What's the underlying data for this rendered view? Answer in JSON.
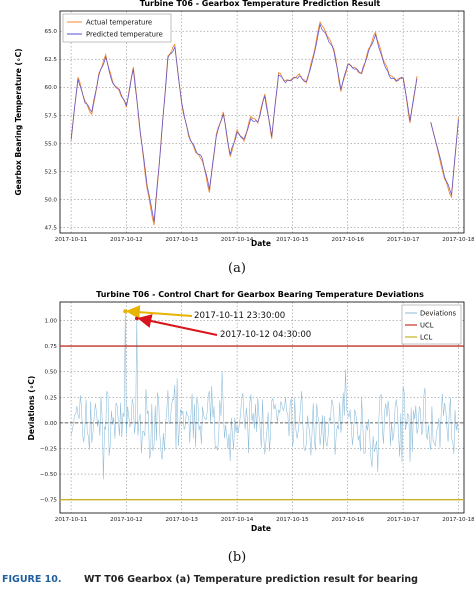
{
  "chart_data": [
    {
      "type": "line",
      "title": "Turbine T06 - Gearbox Temperature Prediction Result",
      "xlabel": "Date",
      "ylabel": "Gearbox Bearing Temperature (∘C)",
      "x_ticks": [
        "2017-10-11",
        "2017-10-12",
        "2017-10-13",
        "2017-10-14",
        "2017-10-15",
        "2017-10-16",
        "2017-10-17",
        "2017-10-18"
      ],
      "y_ticks": [
        "47.5",
        "50.0",
        "52.5",
        "55.0",
        "57.5",
        "60.0",
        "62.5",
        "65.0"
      ],
      "xlim_days": [
        10.8,
        18.1
      ],
      "ylim": [
        47.0,
        66.8
      ],
      "legend_position": "upper-left",
      "colors": {
        "actual": "#f08a30",
        "predicted": "#5a4fd6"
      },
      "series": [
        {
          "name": "Actual temperature",
          "x": [
            "10-11 00:00",
            "10-11 03:00",
            "10-11 06:00",
            "10-11 09:00",
            "10-11 12:00",
            "10-11 15:00",
            "10-11 18:00",
            "10-11 21:00",
            "10-12 00:00",
            "10-12 03:00",
            "10-12 06:00",
            "10-12 09:00",
            "10-12 12:00",
            "10-12 15:00",
            "10-12 18:00",
            "10-12 21:00",
            "10-13 00:00",
            "10-13 03:00",
            "10-13 06:00",
            "10-13 09:00",
            "10-13 12:00",
            "10-13 15:00",
            "10-13 18:00",
            "10-13 21:00",
            "10-14 00:00",
            "10-14 03:00",
            "10-14 06:00",
            "10-14 09:00",
            "10-14 12:00",
            "10-14 15:00",
            "10-14 18:00",
            "10-14 21:00",
            "10-15 00:00",
            "10-15 03:00",
            "10-15 06:00",
            "10-15 09:00",
            "10-15 12:00",
            "10-15 15:00",
            "10-15 18:00",
            "10-15 21:00",
            "10-16 00:00",
            "10-16 03:00",
            "10-16 06:00",
            "10-16 09:00",
            "10-16 12:00",
            "10-16 15:00",
            "10-16 18:00",
            "10-16 21:00",
            "10-17 00:00",
            "10-17 03:00",
            "10-17 06:00",
            "10-17 09:00",
            "10-17 12:00",
            "10-17 18:00",
            "10-17 21:00",
            "10-18 00:00"
          ],
          "values": [
            55.2,
            60.9,
            58.8,
            57.6,
            61.2,
            62.9,
            60.5,
            59.6,
            58.2,
            61.8,
            55.9,
            50.9,
            47.7,
            55.2,
            62.8,
            63.8,
            58.4,
            55.6,
            54.2,
            53.4,
            50.6,
            55.8,
            57.8,
            53.8,
            56.2,
            55.2,
            57.4,
            56.8,
            59.4,
            55.4,
            61.3,
            60.6,
            60.8,
            61.2,
            60.4,
            62.8,
            65.8,
            64.6,
            63.4,
            59.6,
            62.1,
            61.8,
            61.2,
            63.4,
            64.9,
            62.7,
            61.1,
            60.5,
            60.9,
            56.8,
            61.0,
            null,
            56.8,
            51.8,
            50.2,
            57.3
          ]
        },
        {
          "name": "Predicted temperature",
          "x": [
            "10-11 00:00",
            "10-11 03:00",
            "10-11 06:00",
            "10-11 09:00",
            "10-11 12:00",
            "10-11 15:00",
            "10-11 18:00",
            "10-11 21:00",
            "10-12 00:00",
            "10-12 03:00",
            "10-12 06:00",
            "10-12 09:00",
            "10-12 12:00",
            "10-12 15:00",
            "10-12 18:00",
            "10-12 21:00",
            "10-13 00:00",
            "10-13 03:00",
            "10-13 06:00",
            "10-13 09:00",
            "10-13 12:00",
            "10-13 15:00",
            "10-13 18:00",
            "10-13 21:00",
            "10-14 00:00",
            "10-14 03:00",
            "10-14 06:00",
            "10-14 09:00",
            "10-14 12:00",
            "10-14 15:00",
            "10-14 18:00",
            "10-14 21:00",
            "10-15 00:00",
            "10-15 03:00",
            "10-15 06:00",
            "10-15 09:00",
            "10-15 12:00",
            "10-15 15:00",
            "10-15 18:00",
            "10-15 21:00",
            "10-16 00:00",
            "10-16 03:00",
            "10-16 06:00",
            "10-16 09:00",
            "10-16 12:00",
            "10-16 15:00",
            "10-16 18:00",
            "10-16 21:00",
            "10-17 00:00",
            "10-17 03:00",
            "10-17 06:00",
            "10-17 09:00",
            "10-17 12:00",
            "10-17 18:00",
            "10-17 21:00",
            "10-18 00:00"
          ],
          "values": [
            55.4,
            60.7,
            58.6,
            57.8,
            61.0,
            62.7,
            60.4,
            59.8,
            58.4,
            61.6,
            56.1,
            51.2,
            48.0,
            55.0,
            62.6,
            63.6,
            58.6,
            55.8,
            54.4,
            53.6,
            50.9,
            55.6,
            57.6,
            54.0,
            56.0,
            55.4,
            57.2,
            56.9,
            59.2,
            55.6,
            61.1,
            60.4,
            60.7,
            61.0,
            60.5,
            62.6,
            65.6,
            64.5,
            63.2,
            59.8,
            62.0,
            61.6,
            61.3,
            63.2,
            64.7,
            62.6,
            61.0,
            60.6,
            60.8,
            57.0,
            60.8,
            null,
            56.9,
            52.0,
            50.4,
            57.1
          ]
        }
      ]
    },
    {
      "type": "line",
      "title": "Turbine T06 - Control Chart for Gearbox Bearing Temperature Deviations",
      "xlabel": "Date",
      "ylabel": "Deviations (∘C)",
      "x_ticks": [
        "2017-10-11",
        "2017-10-12",
        "2017-10-13",
        "2017-10-14",
        "2017-10-15",
        "2017-10-16",
        "2017-10-17",
        "2017-10-18"
      ],
      "y_ticks": [
        "−0.75",
        "−0.50",
        "−0.25",
        "0.00",
        "0.25",
        "0.50",
        "0.75",
        "1.00"
      ],
      "xlim_days": [
        10.8,
        18.1
      ],
      "ylim": [
        -0.88,
        1.18
      ],
      "legend_position": "upper-right",
      "colors": {
        "deviations": "#8bbbd8",
        "ucl": "#c0332b",
        "lcl": "#c9b227",
        "zero": "#333333"
      },
      "series": [
        {
          "name": "Deviations",
          "x_start": "2017-10-11 00:00",
          "interval_minutes": 30,
          "values_generated_by": "script"
        },
        {
          "name": "UCL",
          "value": 0.75
        },
        {
          "name": "LCL",
          "value": -0.75
        }
      ],
      "annotations": [
        {
          "text": "2017-10-11 23:30:00",
          "point_value": 1.09,
          "arrow_color": "#e8b400"
        },
        {
          "text": "2017-10-12 04:30:00",
          "point_value": 1.02,
          "arrow_color": "#d8141c"
        }
      ]
    }
  ],
  "sublabels": [
    "(a)",
    "(b)"
  ],
  "caption": {
    "prefix": "FIGURE 10.",
    "text": "WT T06 Gearbox (a) Temperature prediction result for bearing"
  }
}
